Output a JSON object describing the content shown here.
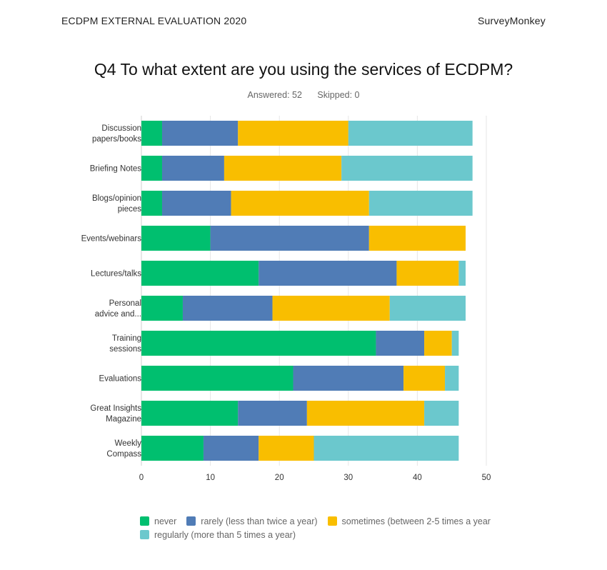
{
  "header": {
    "left": "ECDPM EXTERNAL EVALUATION 2020",
    "right": "SurveyMonkey"
  },
  "question": {
    "title": "Q4 To what extent are you using the services of ECDPM?",
    "answered_label": "Answered: 52",
    "skipped_label": "Skipped: 0"
  },
  "chart_data": {
    "type": "bar",
    "orientation": "horizontal",
    "stacked": true,
    "categories": [
      [
        "Discussion",
        "papers/books"
      ],
      [
        "Briefing Notes"
      ],
      [
        "Blogs/opinion",
        "pieces"
      ],
      [
        "Events/webinars"
      ],
      [
        "Lectures/talks"
      ],
      [
        "Personal",
        "advice and..."
      ],
      [
        "Training",
        "sessions"
      ],
      [
        "Evaluations"
      ],
      [
        "Great Insights",
        "Magazine"
      ],
      [
        "Weekly",
        "Compass"
      ]
    ],
    "series": [
      {
        "name": "never",
        "color": "#00bf6f",
        "values": [
          3,
          3,
          3,
          10,
          17,
          6,
          34,
          22,
          14,
          9
        ]
      },
      {
        "name": "rarely (less than twice a year)",
        "color": "#507cb6",
        "values": [
          11,
          9,
          10,
          23,
          20,
          13,
          7,
          16,
          10,
          8
        ]
      },
      {
        "name": "sometimes (between 2-5 times a year",
        "color": "#f9be00",
        "values": [
          16,
          17,
          20,
          14,
          9,
          17,
          4,
          6,
          17,
          8
        ]
      },
      {
        "name": "regularly (more than 5 times a year)",
        "color": "#6bc8cd",
        "values": [
          18,
          19,
          15,
          0,
          1,
          11,
          1,
          2,
          5,
          21
        ]
      }
    ],
    "xlim": [
      0,
      50
    ],
    "xticks": [
      0,
      10,
      20,
      30,
      40,
      50
    ],
    "grid": true,
    "legend_position": "bottom"
  }
}
